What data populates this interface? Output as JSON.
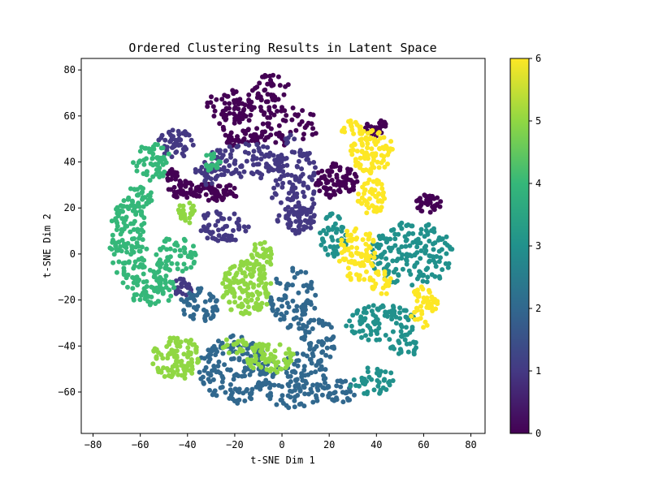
{
  "chart_data": {
    "type": "scatter",
    "title": "Ordered Clustering Results in Latent Space",
    "xlabel": "t-SNE Dim 1",
    "ylabel": "t-SNE Dim 2",
    "xlim": [
      -85,
      86
    ],
    "ylim": [
      -78,
      85
    ],
    "xticks": [
      -80,
      -60,
      -40,
      -20,
      0,
      20,
      40,
      60,
      80
    ],
    "yticks": [
      -60,
      -40,
      -20,
      0,
      20,
      40,
      60,
      80
    ],
    "grid": false,
    "colormap": "viridis",
    "colorbar": {
      "min": 0,
      "max": 6,
      "ticks": [
        0,
        1,
        2,
        3,
        4,
        5,
        6
      ]
    },
    "cluster_colors": [
      "#440154",
      "#443983",
      "#31688e",
      "#21918c",
      "#35b779",
      "#90d743",
      "#fde725"
    ],
    "clusters": [
      {
        "value": 0,
        "regions": [
          [
            -5,
            56,
            22,
            9,
            110
          ],
          [
            -5,
            72,
            8,
            6,
            40
          ],
          [
            -22,
            65,
            10,
            7,
            50
          ],
          [
            -28,
            27,
            10,
            4,
            60
          ],
          [
            -42,
            28,
            6,
            4,
            35
          ],
          [
            23,
            32,
            9,
            8,
            80
          ],
          [
            40,
            55,
            5,
            4,
            25
          ],
          [
            62,
            22,
            6,
            4,
            35
          ],
          [
            -47,
            34,
            3,
            3,
            15
          ],
          [
            -20,
            50,
            4,
            3,
            15
          ]
        ]
      },
      {
        "value": 1,
        "regions": [
          [
            -15,
            40,
            18,
            8,
            110
          ],
          [
            5,
            30,
            10,
            22,
            120
          ],
          [
            -25,
            12,
            12,
            7,
            60
          ],
          [
            -45,
            48,
            8,
            6,
            50
          ],
          [
            -32,
            35,
            5,
            5,
            30
          ],
          [
            8,
            15,
            6,
            6,
            40
          ],
          [
            -42,
            -15,
            4,
            5,
            25
          ]
        ]
      },
      {
        "value": 2,
        "regions": [
          [
            -20,
            -50,
            15,
            15,
            160
          ],
          [
            5,
            -55,
            15,
            12,
            120
          ],
          [
            5,
            -20,
            10,
            14,
            80
          ],
          [
            -35,
            -22,
            8,
            8,
            50
          ],
          [
            15,
            -38,
            8,
            10,
            50
          ],
          [
            25,
            -60,
            6,
            5,
            30
          ]
        ]
      },
      {
        "value": 3,
        "regions": [
          [
            55,
            0,
            18,
            14,
            170
          ],
          [
            42,
            -30,
            15,
            8,
            90
          ],
          [
            22,
            8,
            6,
            10,
            45
          ],
          [
            38,
            -55,
            10,
            6,
            40
          ],
          [
            52,
            -40,
            6,
            5,
            25
          ]
        ]
      },
      {
        "value": 4,
        "regions": [
          [
            -65,
            5,
            8,
            20,
            130
          ],
          [
            -55,
            -15,
            10,
            8,
            70
          ],
          [
            -45,
            0,
            10,
            8,
            60
          ],
          [
            -55,
            40,
            8,
            8,
            60
          ],
          [
            -30,
            40,
            4,
            4,
            20
          ],
          [
            -60,
            25,
            5,
            6,
            30
          ]
        ]
      },
      {
        "value": 5,
        "regions": [
          [
            -15,
            -15,
            11,
            12,
            140
          ],
          [
            -8,
            0,
            5,
            6,
            30
          ],
          [
            -45,
            -45,
            10,
            10,
            110
          ],
          [
            -5,
            -45,
            10,
            7,
            70
          ],
          [
            -40,
            18,
            4,
            5,
            25
          ],
          [
            -20,
            -40,
            5,
            4,
            20
          ]
        ]
      },
      {
        "value": 6,
        "regions": [
          [
            38,
            45,
            9,
            10,
            90
          ],
          [
            38,
            25,
            6,
            8,
            50
          ],
          [
            32,
            0,
            8,
            12,
            80
          ],
          [
            60,
            -23,
            6,
            9,
            50
          ],
          [
            42,
            -12,
            5,
            6,
            25
          ],
          [
            30,
            55,
            5,
            4,
            20
          ]
        ]
      }
    ]
  }
}
